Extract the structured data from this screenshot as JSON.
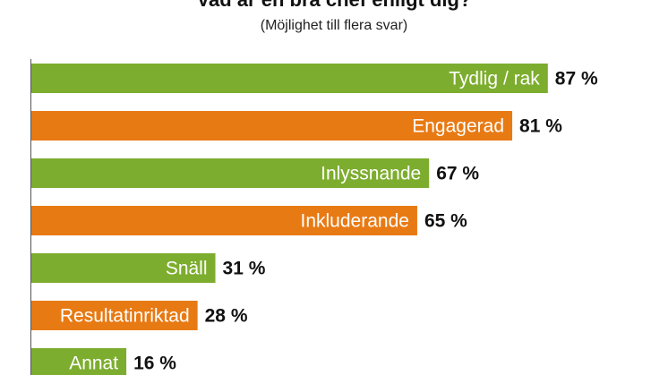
{
  "chart_data": {
    "type": "bar",
    "orientation": "horizontal",
    "title": "Vad är en bra chef enligt dig?",
    "subtitle": "(Möjlighet till flera svar)",
    "categories": [
      "Tydlig / rak",
      "Engagerad",
      "Inlyssnande",
      "Inkluderande",
      "Snäll",
      "Resultatinriktad",
      "Annat"
    ],
    "values": [
      87,
      81,
      67,
      65,
      31,
      28,
      16
    ],
    "value_labels": [
      "87 %",
      "81 %",
      "67 %",
      "65 %",
      "31 %",
      "28 %",
      "16 %"
    ],
    "colors": [
      "#7dad2e",
      "#e87a14",
      "#7dad2e",
      "#e87a14",
      "#7dad2e",
      "#e87a14",
      "#7dad2e"
    ],
    "xlim": [
      0,
      100
    ],
    "grid": false,
    "legend": "none"
  }
}
